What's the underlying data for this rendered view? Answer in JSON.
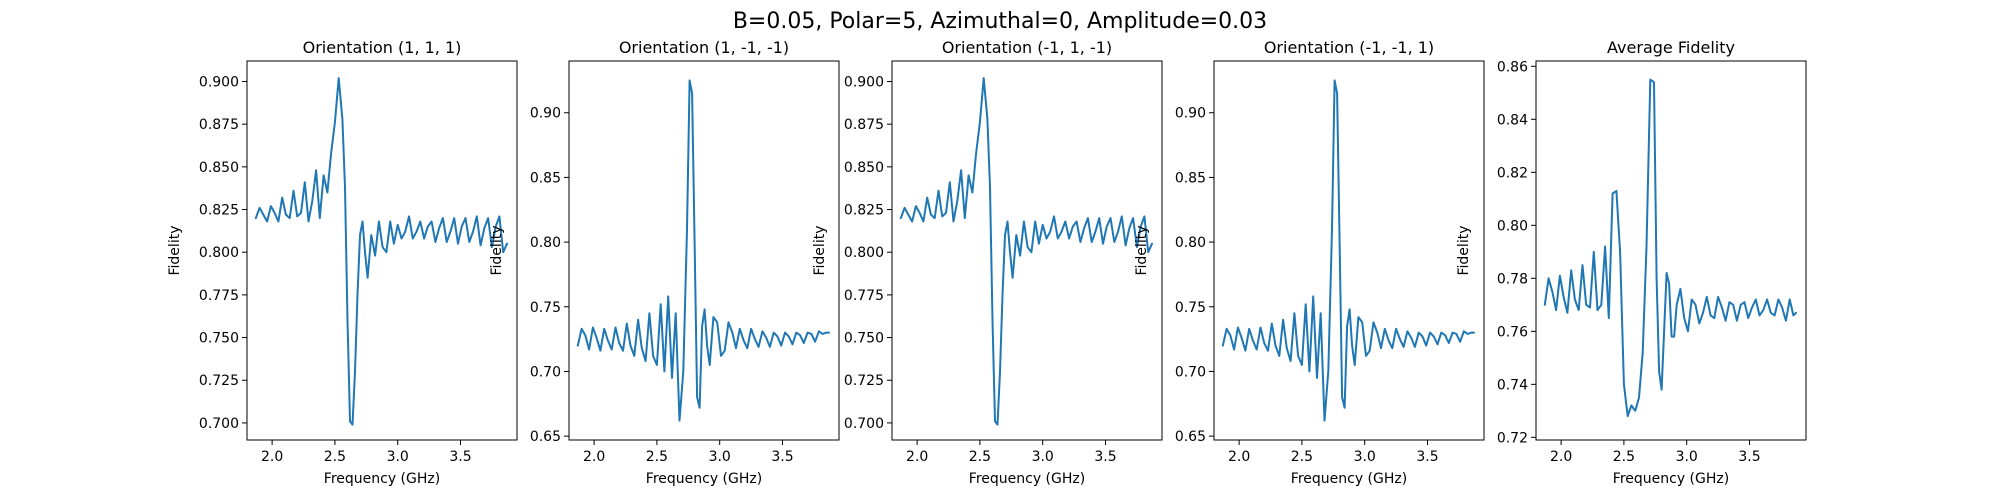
{
  "figure": {
    "suptitle": "B=0.05, Polar=5, Azimuthal=0, Amplitude=0.03"
  },
  "colors": {
    "line": "#1f77b4"
  },
  "chart_data": [
    {
      "type": "line",
      "title": "Orientation (1, 1, 1)",
      "xlabel": "Frequency (GHz)",
      "ylabel": "Fidelity",
      "xlim": [
        1.8,
        3.95
      ],
      "ylim": [
        0.69,
        0.912
      ],
      "xticks": [
        2.0,
        2.5,
        3.0,
        3.5
      ],
      "xtick_labels": [
        "2.0",
        "2.5",
        "3.0",
        "3.5"
      ],
      "yticks": [
        0.7,
        0.725,
        0.75,
        0.775,
        0.8,
        0.825,
        0.85,
        0.875,
        0.9
      ],
      "ytick_labels": [
        "0.700",
        "0.725",
        "0.750",
        "0.775",
        "0.800",
        "0.825",
        "0.850",
        "0.875",
        "0.900"
      ],
      "grid": false,
      "series": [
        {
          "x": [
            1.87,
            1.9,
            1.93,
            1.96,
            1.99,
            2.02,
            2.05,
            2.08,
            2.11,
            2.14,
            2.17,
            2.2,
            2.23,
            2.26,
            2.29,
            2.32,
            2.35,
            2.38,
            2.41,
            2.44,
            2.47,
            2.5,
            2.53,
            2.56,
            2.58,
            2.6,
            2.62,
            2.64,
            2.66,
            2.68,
            2.7,
            2.72,
            2.74,
            2.76,
            2.79,
            2.82,
            2.85,
            2.88,
            2.91,
            2.94,
            2.97,
            3.0,
            3.03,
            3.06,
            3.09,
            3.12,
            3.15,
            3.18,
            3.21,
            3.24,
            3.27,
            3.3,
            3.33,
            3.36,
            3.39,
            3.42,
            3.45,
            3.48,
            3.51,
            3.54,
            3.57,
            3.6,
            3.63,
            3.66,
            3.69,
            3.72,
            3.75,
            3.78,
            3.81,
            3.84,
            3.87
          ],
          "y": [
            0.82,
            0.826,
            0.822,
            0.818,
            0.827,
            0.823,
            0.818,
            0.832,
            0.822,
            0.82,
            0.836,
            0.821,
            0.823,
            0.841,
            0.818,
            0.83,
            0.848,
            0.82,
            0.845,
            0.835,
            0.858,
            0.876,
            0.902,
            0.878,
            0.838,
            0.76,
            0.701,
            0.699,
            0.73,
            0.775,
            0.81,
            0.818,
            0.8,
            0.785,
            0.81,
            0.798,
            0.818,
            0.803,
            0.8,
            0.818,
            0.805,
            0.816,
            0.808,
            0.812,
            0.821,
            0.808,
            0.812,
            0.818,
            0.808,
            0.815,
            0.818,
            0.806,
            0.814,
            0.82,
            0.806,
            0.812,
            0.82,
            0.805,
            0.815,
            0.82,
            0.806,
            0.812,
            0.821,
            0.804,
            0.814,
            0.82,
            0.803,
            0.815,
            0.821,
            0.8,
            0.805
          ]
        }
      ]
    },
    {
      "type": "line",
      "title": "Orientation (1, -1, -1)",
      "xlabel": "Frequency (GHz)",
      "ylabel": "Fidelity",
      "xlim": [
        1.8,
        3.95
      ],
      "ylim": [
        0.647,
        0.94
      ],
      "xticks": [
        2.0,
        2.5,
        3.0,
        3.5
      ],
      "xtick_labels": [
        "2.0",
        "2.5",
        "3.0",
        "3.5"
      ],
      "yticks": [
        0.65,
        0.7,
        0.75,
        0.8,
        0.85,
        0.9
      ],
      "ytick_labels": [
        "0.65",
        "0.70",
        "0.75",
        "0.80",
        "0.85",
        "0.90"
      ],
      "grid": false,
      "series": [
        {
          "x": [
            1.87,
            1.9,
            1.93,
            1.96,
            1.99,
            2.02,
            2.05,
            2.08,
            2.11,
            2.14,
            2.17,
            2.2,
            2.23,
            2.26,
            2.29,
            2.32,
            2.35,
            2.38,
            2.41,
            2.44,
            2.47,
            2.5,
            2.53,
            2.56,
            2.59,
            2.62,
            2.65,
            2.68,
            2.71,
            2.74,
            2.76,
            2.78,
            2.8,
            2.82,
            2.84,
            2.86,
            2.88,
            2.9,
            2.92,
            2.95,
            2.98,
            3.01,
            3.04,
            3.07,
            3.1,
            3.13,
            3.16,
            3.19,
            3.22,
            3.25,
            3.28,
            3.31,
            3.34,
            3.37,
            3.4,
            3.43,
            3.46,
            3.49,
            3.52,
            3.55,
            3.58,
            3.61,
            3.64,
            3.67,
            3.7,
            3.73,
            3.76,
            3.79,
            3.82,
            3.85,
            3.87
          ],
          "y": [
            0.72,
            0.733,
            0.728,
            0.717,
            0.734,
            0.726,
            0.716,
            0.733,
            0.724,
            0.717,
            0.734,
            0.722,
            0.716,
            0.737,
            0.72,
            0.712,
            0.74,
            0.718,
            0.708,
            0.745,
            0.712,
            0.705,
            0.752,
            0.7,
            0.758,
            0.695,
            0.745,
            0.662,
            0.7,
            0.81,
            0.925,
            0.915,
            0.8,
            0.68,
            0.672,
            0.735,
            0.748,
            0.72,
            0.705,
            0.742,
            0.738,
            0.712,
            0.716,
            0.738,
            0.73,
            0.718,
            0.733,
            0.724,
            0.718,
            0.733,
            0.725,
            0.719,
            0.731,
            0.726,
            0.719,
            0.73,
            0.727,
            0.72,
            0.73,
            0.727,
            0.721,
            0.73,
            0.728,
            0.722,
            0.73,
            0.729,
            0.723,
            0.731,
            0.729,
            0.73,
            0.73
          ]
        }
      ]
    },
    {
      "type": "line",
      "title": "Orientation (-1, 1, -1)",
      "xlabel": "Frequency (GHz)",
      "ylabel": "Fidelity",
      "xlim": [
        1.8,
        3.95
      ],
      "ylim": [
        0.69,
        0.912
      ],
      "xticks": [
        2.0,
        2.5,
        3.0,
        3.5
      ],
      "xtick_labels": [
        "2.0",
        "2.5",
        "3.0",
        "3.5"
      ],
      "yticks": [
        0.7,
        0.725,
        0.75,
        0.775,
        0.8,
        0.825,
        0.85,
        0.875,
        0.9
      ],
      "ytick_labels": [
        "0.700",
        "0.725",
        "0.750",
        "0.775",
        "0.800",
        "0.825",
        "0.850",
        "0.875",
        "0.900"
      ],
      "grid": false,
      "series": [
        {
          "x": [
            1.87,
            1.9,
            1.93,
            1.96,
            1.99,
            2.02,
            2.05,
            2.08,
            2.11,
            2.14,
            2.17,
            2.2,
            2.23,
            2.26,
            2.29,
            2.32,
            2.35,
            2.38,
            2.41,
            2.44,
            2.47,
            2.5,
            2.53,
            2.56,
            2.58,
            2.6,
            2.62,
            2.64,
            2.66,
            2.68,
            2.7,
            2.72,
            2.74,
            2.76,
            2.79,
            2.82,
            2.85,
            2.88,
            2.91,
            2.94,
            2.97,
            3.0,
            3.03,
            3.06,
            3.09,
            3.12,
            3.15,
            3.18,
            3.21,
            3.24,
            3.27,
            3.3,
            3.33,
            3.36,
            3.39,
            3.42,
            3.45,
            3.48,
            3.51,
            3.54,
            3.57,
            3.6,
            3.63,
            3.66,
            3.69,
            3.72,
            3.75,
            3.78,
            3.81,
            3.84,
            3.87
          ],
          "y": [
            0.82,
            0.826,
            0.822,
            0.818,
            0.827,
            0.823,
            0.818,
            0.832,
            0.822,
            0.82,
            0.836,
            0.821,
            0.823,
            0.841,
            0.818,
            0.83,
            0.848,
            0.82,
            0.845,
            0.835,
            0.858,
            0.876,
            0.902,
            0.878,
            0.838,
            0.76,
            0.701,
            0.699,
            0.73,
            0.775,
            0.81,
            0.818,
            0.8,
            0.785,
            0.81,
            0.798,
            0.818,
            0.803,
            0.8,
            0.818,
            0.805,
            0.816,
            0.808,
            0.812,
            0.821,
            0.808,
            0.812,
            0.818,
            0.808,
            0.815,
            0.818,
            0.806,
            0.814,
            0.82,
            0.806,
            0.812,
            0.82,
            0.805,
            0.815,
            0.82,
            0.806,
            0.812,
            0.821,
            0.804,
            0.814,
            0.82,
            0.803,
            0.815,
            0.821,
            0.8,
            0.805
          ]
        }
      ]
    },
    {
      "type": "line",
      "title": "Orientation (-1, -1, 1)",
      "xlabel": "Frequency (GHz)",
      "ylabel": "Fidelity",
      "xlim": [
        1.8,
        3.95
      ],
      "ylim": [
        0.647,
        0.94
      ],
      "xticks": [
        2.0,
        2.5,
        3.0,
        3.5
      ],
      "xtick_labels": [
        "2.0",
        "2.5",
        "3.0",
        "3.5"
      ],
      "yticks": [
        0.65,
        0.7,
        0.75,
        0.8,
        0.85,
        0.9
      ],
      "ytick_labels": [
        "0.65",
        "0.70",
        "0.75",
        "0.80",
        "0.85",
        "0.90"
      ],
      "grid": false,
      "series": [
        {
          "x": [
            1.87,
            1.9,
            1.93,
            1.96,
            1.99,
            2.02,
            2.05,
            2.08,
            2.11,
            2.14,
            2.17,
            2.2,
            2.23,
            2.26,
            2.29,
            2.32,
            2.35,
            2.38,
            2.41,
            2.44,
            2.47,
            2.5,
            2.53,
            2.56,
            2.59,
            2.62,
            2.65,
            2.68,
            2.71,
            2.74,
            2.76,
            2.78,
            2.8,
            2.82,
            2.84,
            2.86,
            2.88,
            2.9,
            2.92,
            2.95,
            2.98,
            3.01,
            3.04,
            3.07,
            3.1,
            3.13,
            3.16,
            3.19,
            3.22,
            3.25,
            3.28,
            3.31,
            3.34,
            3.37,
            3.4,
            3.43,
            3.46,
            3.49,
            3.52,
            3.55,
            3.58,
            3.61,
            3.64,
            3.67,
            3.7,
            3.73,
            3.76,
            3.79,
            3.82,
            3.85,
            3.87
          ],
          "y": [
            0.72,
            0.733,
            0.728,
            0.717,
            0.734,
            0.726,
            0.716,
            0.733,
            0.724,
            0.717,
            0.734,
            0.722,
            0.716,
            0.737,
            0.72,
            0.712,
            0.74,
            0.718,
            0.708,
            0.745,
            0.712,
            0.705,
            0.752,
            0.7,
            0.758,
            0.695,
            0.745,
            0.662,
            0.7,
            0.81,
            0.925,
            0.915,
            0.8,
            0.68,
            0.672,
            0.735,
            0.748,
            0.72,
            0.705,
            0.742,
            0.738,
            0.712,
            0.716,
            0.738,
            0.73,
            0.718,
            0.733,
            0.724,
            0.718,
            0.733,
            0.725,
            0.719,
            0.731,
            0.726,
            0.719,
            0.73,
            0.727,
            0.72,
            0.73,
            0.727,
            0.721,
            0.73,
            0.728,
            0.722,
            0.73,
            0.729,
            0.723,
            0.731,
            0.729,
            0.73,
            0.73
          ]
        }
      ]
    },
    {
      "type": "line",
      "title": "Average Fidelity",
      "xlabel": "Frequency (GHz)",
      "ylabel": "Fidelity",
      "xlim": [
        1.8,
        3.95
      ],
      "ylim": [
        0.719,
        0.862
      ],
      "xticks": [
        2.0,
        2.5,
        3.0,
        3.5
      ],
      "xtick_labels": [
        "2.0",
        "2.5",
        "3.0",
        "3.5"
      ],
      "yticks": [
        0.72,
        0.74,
        0.76,
        0.78,
        0.8,
        0.82,
        0.84,
        0.86
      ],
      "ytick_labels": [
        "0.72",
        "0.74",
        "0.76",
        "0.78",
        "0.80",
        "0.82",
        "0.84",
        "0.86"
      ],
      "grid": false,
      "series": [
        {
          "x": [
            1.87,
            1.9,
            1.93,
            1.96,
            1.99,
            2.02,
            2.05,
            2.08,
            2.11,
            2.14,
            2.17,
            2.2,
            2.23,
            2.26,
            2.29,
            2.32,
            2.35,
            2.38,
            2.41,
            2.44,
            2.47,
            2.5,
            2.53,
            2.56,
            2.59,
            2.62,
            2.65,
            2.68,
            2.71,
            2.74,
            2.76,
            2.78,
            2.8,
            2.82,
            2.84,
            2.86,
            2.88,
            2.9,
            2.92,
            2.95,
            2.98,
            3.01,
            3.04,
            3.07,
            3.1,
            3.13,
            3.16,
            3.19,
            3.22,
            3.25,
            3.28,
            3.31,
            3.34,
            3.37,
            3.4,
            3.43,
            3.46,
            3.49,
            3.52,
            3.55,
            3.58,
            3.61,
            3.64,
            3.67,
            3.7,
            3.73,
            3.76,
            3.79,
            3.82,
            3.85,
            3.87
          ],
          "y": [
            0.77,
            0.78,
            0.775,
            0.768,
            0.781,
            0.773,
            0.767,
            0.783,
            0.772,
            0.768,
            0.785,
            0.77,
            0.769,
            0.79,
            0.768,
            0.77,
            0.792,
            0.765,
            0.812,
            0.813,
            0.79,
            0.74,
            0.728,
            0.732,
            0.73,
            0.735,
            0.752,
            0.792,
            0.855,
            0.854,
            0.78,
            0.745,
            0.738,
            0.76,
            0.782,
            0.778,
            0.758,
            0.758,
            0.77,
            0.776,
            0.765,
            0.76,
            0.772,
            0.77,
            0.763,
            0.767,
            0.773,
            0.766,
            0.765,
            0.773,
            0.769,
            0.764,
            0.771,
            0.77,
            0.764,
            0.77,
            0.771,
            0.765,
            0.769,
            0.772,
            0.766,
            0.768,
            0.772,
            0.767,
            0.766,
            0.772,
            0.769,
            0.764,
            0.772,
            0.766,
            0.767
          ]
        }
      ]
    }
  ]
}
